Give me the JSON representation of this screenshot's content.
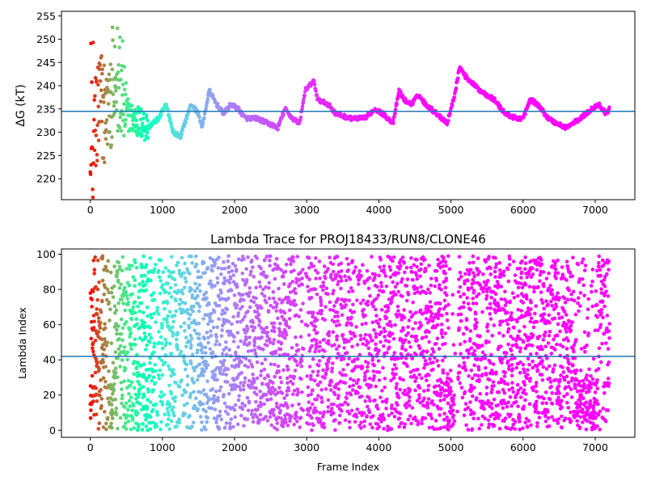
{
  "chart_data": [
    {
      "id": "delta-g",
      "type": "scatter",
      "title": "",
      "xlabel": "",
      "ylabel": "ΔG (kT)",
      "xlim": [
        -400,
        7550
      ],
      "ylim": [
        215.5,
        256
      ],
      "xticks": [
        0,
        1000,
        2000,
        3000,
        4000,
        5000,
        6000,
        7000
      ],
      "yticks": [
        220,
        225,
        230,
        235,
        240,
        245,
        250,
        255
      ],
      "hline": 234.5,
      "hline_color": "#1f77b4",
      "colormap": "rainbow (red at early frames → violet at late frames)",
      "grid": false,
      "trace_keypoints": [
        [
          0,
          230
        ],
        [
          40,
          228
        ],
        [
          80,
          233
        ],
        [
          140,
          236
        ],
        [
          200,
          234
        ],
        [
          300,
          236
        ],
        [
          400,
          238
        ],
        [
          480,
          235
        ],
        [
          560,
          233
        ],
        [
          700,
          232
        ],
        [
          800,
          231
        ],
        [
          950,
          233
        ],
        [
          1050,
          236
        ],
        [
          1150,
          230
        ],
        [
          1250,
          229
        ],
        [
          1330,
          233
        ],
        [
          1400,
          236
        ],
        [
          1500,
          234
        ],
        [
          1550,
          231
        ],
        [
          1650,
          239
        ],
        [
          1750,
          236
        ],
        [
          1850,
          234
        ],
        [
          1950,
          236
        ],
        [
          2050,
          235
        ],
        [
          2150,
          233
        ],
        [
          2300,
          233
        ],
        [
          2450,
          232
        ],
        [
          2600,
          231
        ],
        [
          2700,
          235
        ],
        [
          2800,
          233
        ],
        [
          2900,
          232
        ],
        [
          2980,
          239
        ],
        [
          3100,
          241
        ],
        [
          3150,
          237
        ],
        [
          3300,
          236
        ],
        [
          3400,
          234
        ],
        [
          3600,
          233
        ],
        [
          3800,
          233
        ],
        [
          3950,
          235
        ],
        [
          4050,
          234
        ],
        [
          4200,
          232
        ],
        [
          4280,
          239
        ],
        [
          4350,
          237
        ],
        [
          4450,
          236
        ],
        [
          4550,
          238
        ],
        [
          4650,
          236
        ],
        [
          4800,
          234
        ],
        [
          4950,
          232
        ],
        [
          5050,
          238
        ],
        [
          5120,
          244
        ],
        [
          5200,
          242
        ],
        [
          5400,
          239
        ],
        [
          5600,
          237
        ],
        [
          5750,
          234
        ],
        [
          5900,
          233
        ],
        [
          6000,
          233
        ],
        [
          6100,
          237
        ],
        [
          6200,
          236
        ],
        [
          6350,
          233
        ],
        [
          6450,
          232
        ],
        [
          6600,
          231
        ],
        [
          6800,
          233
        ],
        [
          6950,
          235
        ],
        [
          7050,
          236
        ],
        [
          7150,
          234
        ],
        [
          7200,
          235
        ]
      ],
      "early_scatter_span": [
        0,
        800
      ],
      "early_scatter_max": 253.5
    },
    {
      "id": "lambda-trace",
      "type": "scatter",
      "title": "Lambda Trace for PROJ18433/RUN8/CLONE46",
      "xlabel": "Frame Index",
      "ylabel": "Lambda Index",
      "xlim": [
        -400,
        7550
      ],
      "ylim": [
        -4,
        103
      ],
      "xticks": [
        0,
        1000,
        2000,
        3000,
        4000,
        5000,
        6000,
        7000
      ],
      "yticks": [
        0,
        20,
        40,
        60,
        80,
        100
      ],
      "hline": 42,
      "hline_color": "#1f77b4",
      "colormap": "rainbow (red at early frames → violet at late frames)",
      "grid": false,
      "x_range": [
        0,
        7200
      ],
      "y_range": [
        0,
        99
      ],
      "sparse_intervals": [
        [
          2950,
          3000
        ],
        [
          5050,
          5100
        ],
        [
          5150,
          5170
        ]
      ],
      "low_lambda_dense_intervals": [
        [
          4950,
          5100
        ],
        [
          6700,
          7000
        ]
      ]
    }
  ]
}
